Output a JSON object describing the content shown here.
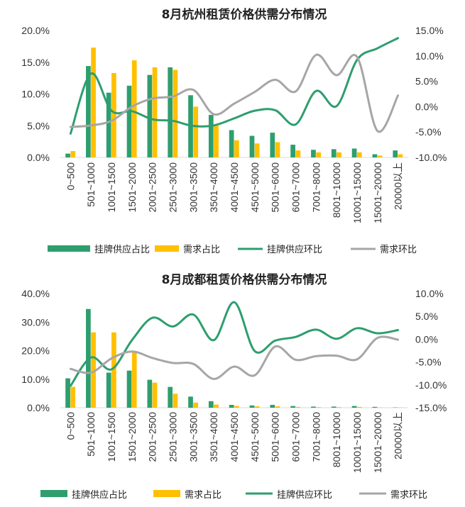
{
  "colors": {
    "supply_share": "#2E9E6E",
    "demand_share": "#FFC000",
    "supply_mom": "#2E9E6E",
    "demand_mom": "#A6A6A6",
    "axis": "#D9D9D9",
    "text": "#333333"
  },
  "legend": {
    "supply_share": "挂牌供应占比",
    "demand_share": "需求占比",
    "supply_mom": "挂牌供应环比",
    "demand_mom": "需求环比"
  },
  "chart_data": [
    {
      "type": "bar",
      "title": "8月杭州租赁价格供需分布情况",
      "categories": [
        "0~500",
        "501~1000",
        "1001~1500",
        "1501~2000",
        "2001~2500",
        "2501~3000",
        "3001~3500",
        "3501~4000",
        "4001~4500",
        "4501~5000",
        "5001~6000",
        "6001~7000",
        "7001~8000",
        "8001~10000",
        "10001~15000",
        "15001~20000",
        "20000以上"
      ],
      "y_left": {
        "min": 0,
        "max": 20,
        "step": 5,
        "tick_labels": [
          "0.0%",
          "5.0%",
          "10.0%",
          "15.0%",
          "20.0%"
        ]
      },
      "y_right": {
        "min": -10,
        "max": 15,
        "step": 5,
        "tick_labels": [
          "-10.0%",
          "-5.0%",
          "0.0%",
          "5.0%",
          "10.0%",
          "15.0%"
        ]
      },
      "series": [
        {
          "name": "挂牌供应占比",
          "kind": "bar",
          "axis": "left",
          "values": [
            0.6,
            14.4,
            10.2,
            11.3,
            13.0,
            14.2,
            9.8,
            6.7,
            4.3,
            3.4,
            3.9,
            2.0,
            1.2,
            1.3,
            1.4,
            0.5,
            1.1
          ]
        },
        {
          "name": "需求占比",
          "kind": "bar",
          "axis": "left",
          "values": [
            1.0,
            17.3,
            13.3,
            15.3,
            14.2,
            13.8,
            8.0,
            5.0,
            2.7,
            2.2,
            2.4,
            1.1,
            0.8,
            0.8,
            0.8,
            0.3,
            0.5
          ]
        },
        {
          "name": "挂牌供应环比",
          "kind": "line",
          "axis": "right",
          "values": [
            -5.3,
            6.5,
            -0.8,
            -0.9,
            -2.5,
            -2.8,
            -3.8,
            -3.7,
            -2.3,
            -0.8,
            -0.7,
            -3.5,
            3.1,
            0.1,
            9.2,
            11.5,
            13.5
          ]
        },
        {
          "name": "需求环比",
          "kind": "line",
          "axis": "right",
          "values": [
            -4.0,
            -3.7,
            -2.8,
            0.0,
            1.6,
            2.0,
            3.3,
            -1.5,
            0.6,
            2.9,
            5.3,
            3.0,
            10.2,
            6.2,
            9.8,
            -4.8,
            2.2
          ]
        }
      ]
    },
    {
      "type": "bar",
      "title": "8月成都租赁价格供需分布情况",
      "categories": [
        "0~500",
        "501~1000",
        "1001~1500",
        "1501~2000",
        "2001~2500",
        "2501~3000",
        "3001~3500",
        "3501~4000",
        "4001~4500",
        "4501~5000",
        "5001~6000",
        "6001~7000",
        "7001~8000",
        "8001~10000",
        "10001~15000",
        "15001~20000",
        "20000以上"
      ],
      "y_left": {
        "min": 0,
        "max": 40,
        "step": 10,
        "tick_labels": [
          "0.0%",
          "10.0%",
          "20.0%",
          "30.0%",
          "40.0%"
        ]
      },
      "y_right": {
        "min": -15,
        "max": 10,
        "step": 5,
        "tick_labels": [
          "-15.0%",
          "-10.0%",
          "-5.0%",
          "0.0%",
          "5.0%",
          "10.0%"
        ]
      },
      "series": [
        {
          "name": "挂牌供应占比",
          "kind": "bar",
          "axis": "left",
          "values": [
            10.3,
            34.6,
            12.3,
            13.0,
            9.8,
            7.3,
            3.9,
            2.3,
            1.0,
            0.8,
            1.0,
            0.6,
            0.4,
            0.4,
            0.6,
            0.3,
            0.1
          ]
        },
        {
          "name": "需求占比",
          "kind": "bar",
          "axis": "left",
          "values": [
            7.3,
            26.4,
            26.4,
            19.6,
            8.8,
            4.9,
            1.8,
            1.1,
            0.6,
            0.5,
            0.5,
            0.3,
            0.2,
            0.2,
            0.3,
            0.1,
            0.1
          ]
        },
        {
          "name": "挂牌供应环比",
          "kind": "line",
          "axis": "right",
          "values": [
            -10.2,
            -4.0,
            -6.6,
            -0.2,
            4.7,
            2.8,
            5.4,
            -0.2,
            8.1,
            -2.6,
            -0.3,
            0.5,
            2.1,
            0.1,
            2.4,
            1.3,
            2.0
          ]
        },
        {
          "name": "需求环比",
          "kind": "line",
          "axis": "right",
          "values": [
            -6.5,
            -7.3,
            -4.2,
            -2.7,
            -4.1,
            -5.2,
            -5.4,
            -8.7,
            -6.0,
            -7.9,
            -1.6,
            -4.5,
            -3.7,
            -3.6,
            -4.4,
            0.3,
            -0.1
          ]
        }
      ]
    }
  ]
}
